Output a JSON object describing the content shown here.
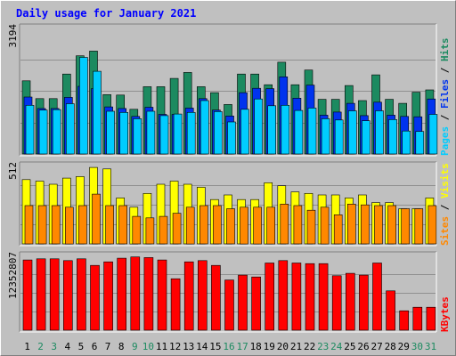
{
  "chart_data": {
    "type": "bar",
    "title": "Daily usage for January 2021",
    "colors": {
      "hits": "#1c8a60",
      "files": "#0033ee",
      "pages": "#00ccff",
      "visits": "#ffff00",
      "sites": "#ff8800",
      "kbytes": "#ff0000",
      "weekday_label": "#000000",
      "weekend_label": "#1c8a60",
      "title": "#0000ff"
    },
    "categories": [
      "1",
      "2",
      "3",
      "4",
      "5",
      "6",
      "7",
      "8",
      "9",
      "10",
      "11",
      "12",
      "13",
      "14",
      "15",
      "16",
      "17",
      "18",
      "19",
      "20",
      "21",
      "22",
      "23",
      "24",
      "25",
      "26",
      "27",
      "28",
      "29",
      "30",
      "31"
    ],
    "weekend_days": [
      "2",
      "3",
      "9",
      "10",
      "16",
      "17",
      "23",
      "24",
      "30",
      "31"
    ],
    "panels": [
      {
        "id": "hits_files_pages",
        "max_label": "3194",
        "ymax": 3194,
        "legend": [
          {
            "text": "Pages",
            "color": "#00ccff"
          },
          {
            "text": " / ",
            "color": "#000000"
          },
          {
            "text": "Files",
            "color": "#0033ee"
          },
          {
            "text": " / ",
            "color": "#000000"
          },
          {
            "text": "Hits",
            "color": "#1c8a60"
          }
        ],
        "series": [
          {
            "name": "Hits",
            "color": "#1c8a60",
            "values": [
              1850,
              1400,
              1400,
              2020,
              2480,
              2600,
              1500,
              1490,
              1130,
              1700,
              1700,
              1910,
              2060,
              1700,
              1550,
              1250,
              2020,
              2020,
              1750,
              2320,
              1750,
              2120,
              1380,
              1380,
              1730,
              1350,
              2000,
              1380,
              1280,
              1560,
              1620
            ]
          },
          {
            "name": "Files",
            "color": "#0033ee",
            "values": [
              1440,
              1150,
              1150,
              1430,
              1710,
              1650,
              1190,
              1150,
              950,
              1180,
              1000,
              1000,
              1160,
              1400,
              1110,
              960,
              1550,
              1660,
              1650,
              1950,
              1410,
              1740,
              980,
              1060,
              1280,
              970,
              1310,
              980,
              950,
              940,
              1390
            ]
          },
          {
            "name": "Pages",
            "color": "#00ccff",
            "values": [
              1230,
              1110,
              1120,
              1270,
              2440,
              2090,
              1080,
              1050,
              890,
              1080,
              970,
              1010,
              1050,
              1350,
              1070,
              810,
              1130,
              1390,
              1220,
              1230,
              1100,
              1160,
              890,
              860,
              1090,
              840,
              1090,
              870,
              580,
              570,
              1000
            ]
          }
        ]
      },
      {
        "id": "visits_sites",
        "max_label": "512",
        "ymax": 512,
        "legend": [
          {
            "text": "Sites",
            "color": "#ff8800"
          },
          {
            "text": " / ",
            "color": "#000000"
          },
          {
            "text": "Visits",
            "color": "#ffff00"
          }
        ],
        "series": [
          {
            "name": "Visits",
            "color": "#ffff00",
            "values": [
              420,
              410,
              390,
              430,
              440,
              500,
              490,
              300,
              240,
              330,
              390,
              410,
              390,
              370,
              290,
              320,
              290,
              290,
              400,
              380,
              340,
              330,
              320,
              320,
              300,
              320,
              270,
              270,
              230,
              230,
              300
            ]
          },
          {
            "name": "Sites",
            "color": "#ff8800",
            "values": [
              250,
              250,
              250,
              240,
              250,
              325,
              250,
              250,
              180,
              170,
              180,
              200,
              240,
              250,
              250,
              230,
              240,
              240,
              240,
              260,
              250,
              220,
              240,
              190,
              260,
              255,
              250,
              250,
              230,
              230,
              250
            ]
          }
        ]
      },
      {
        "id": "kbytes",
        "max_label": "12352807",
        "ymax": 12352807,
        "legend": [
          {
            "text": "KBytes",
            "color": "#ff0000"
          }
        ],
        "series": [
          {
            "name": "KBytes",
            "color": "#ff0000",
            "values": [
              11600000,
              11800000,
              11800000,
              11500000,
              11800000,
              10700000,
              11300000,
              11900000,
              12100000,
              12000000,
              11600000,
              8500000,
              11300000,
              11500000,
              10700000,
              8300000,
              9100000,
              8800000,
              11100000,
              11500000,
              11100000,
              11000000,
              11000000,
              9000000,
              9400000,
              9100000,
              11100000,
              6500000,
              3200000,
              3800000,
              3800000
            ]
          }
        ]
      }
    ]
  }
}
